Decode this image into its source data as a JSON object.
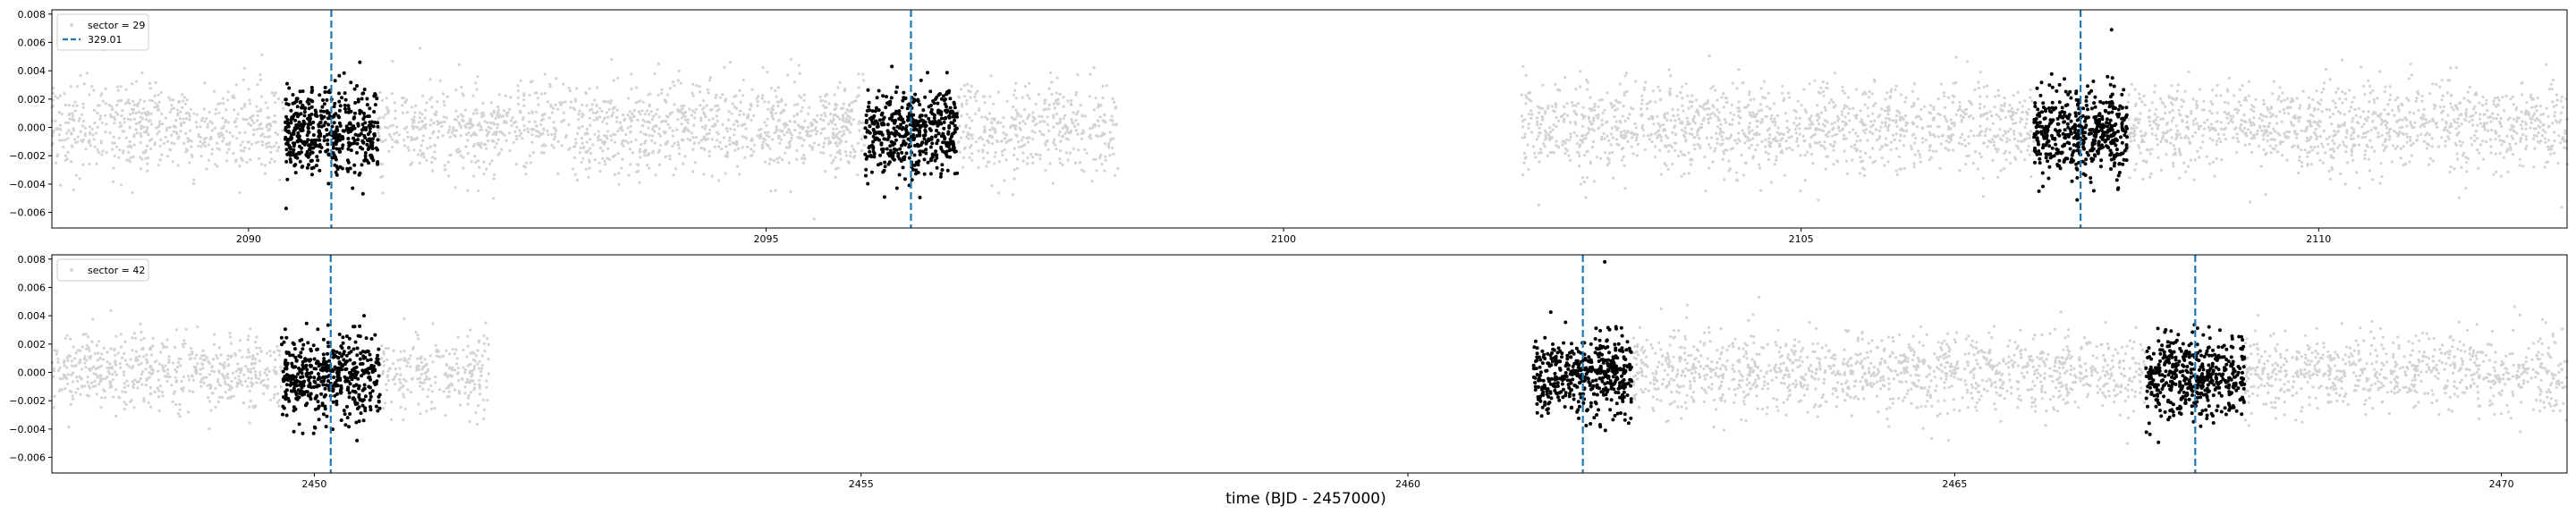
{
  "figure": {
    "xlabel": "time (BJD - 2457000)"
  },
  "colors": {
    "out_of_transit": "#d3d3d3",
    "in_transit": "#000000",
    "period_line": "#1f77b4",
    "axes": "#000000"
  },
  "chart_data": [
    {
      "type": "scatter",
      "title": "",
      "xlabel": "",
      "ylabel": "",
      "xlim": [
        2088.1,
        2112.4
      ],
      "ylim": [
        -0.0071,
        0.0083
      ],
      "x_ticks": [
        2090,
        2095,
        2100,
        2105,
        2110
      ],
      "y_ticks": [
        -0.006,
        -0.004,
        -0.002,
        0.0,
        0.002,
        0.004,
        0.006,
        0.008
      ],
      "y_tick_labels": [
        "−0.006",
        "−0.004",
        "−0.002",
        "0.000",
        "0.002",
        "0.004",
        "0.006",
        "0.008"
      ],
      "legend": {
        "location": "upper-left",
        "entries": [
          {
            "label": "sector = 29",
            "marker": "dot",
            "color": "#d3d3d3"
          },
          {
            "label": "329.01",
            "marker": "dashed-line",
            "color": "#1f77b4"
          }
        ]
      },
      "data_segments": [
        {
          "x_start": 2088.1,
          "x_end": 2098.4,
          "sigma": 0.0016
        },
        {
          "x_start": 2102.3,
          "x_end": 2112.4,
          "sigma": 0.0016
        }
      ],
      "transit_markers": [
        2090.8,
        2096.4,
        2107.7
      ],
      "transit_half_width": 0.45,
      "transit_sigma": 0.0015,
      "transit_depth": 0.0003,
      "max_point": {
        "x": 2108.0,
        "y": 0.0069
      }
    },
    {
      "type": "scatter",
      "title": "",
      "xlabel": "",
      "ylabel": "",
      "xlim": [
        2447.6,
        2470.6
      ],
      "ylim": [
        -0.0071,
        0.0083
      ],
      "x_ticks": [
        2450,
        2455,
        2460,
        2465,
        2470
      ],
      "y_ticks": [
        -0.006,
        -0.004,
        -0.002,
        0.0,
        0.002,
        0.004,
        0.006,
        0.008
      ],
      "y_tick_labels": [
        "−0.006",
        "−0.004",
        "−0.002",
        "0.000",
        "0.002",
        "0.004",
        "0.006",
        "0.008"
      ],
      "legend": {
        "location": "upper-left",
        "entries": [
          {
            "label": "sector = 42",
            "marker": "dot",
            "color": "#d3d3d3"
          }
        ]
      },
      "data_segments": [
        {
          "x_start": 2447.6,
          "x_end": 2451.6,
          "sigma": 0.0014
        },
        {
          "x_start": 2461.2,
          "x_end": 2470.6,
          "sigma": 0.0014
        }
      ],
      "transit_markers": [
        2450.15,
        2461.6,
        2467.2
      ],
      "transit_half_width": 0.45,
      "transit_sigma": 0.0014,
      "transit_depth": 0.0003,
      "max_point": {
        "x": 2461.8,
        "y": 0.0078
      }
    }
  ]
}
